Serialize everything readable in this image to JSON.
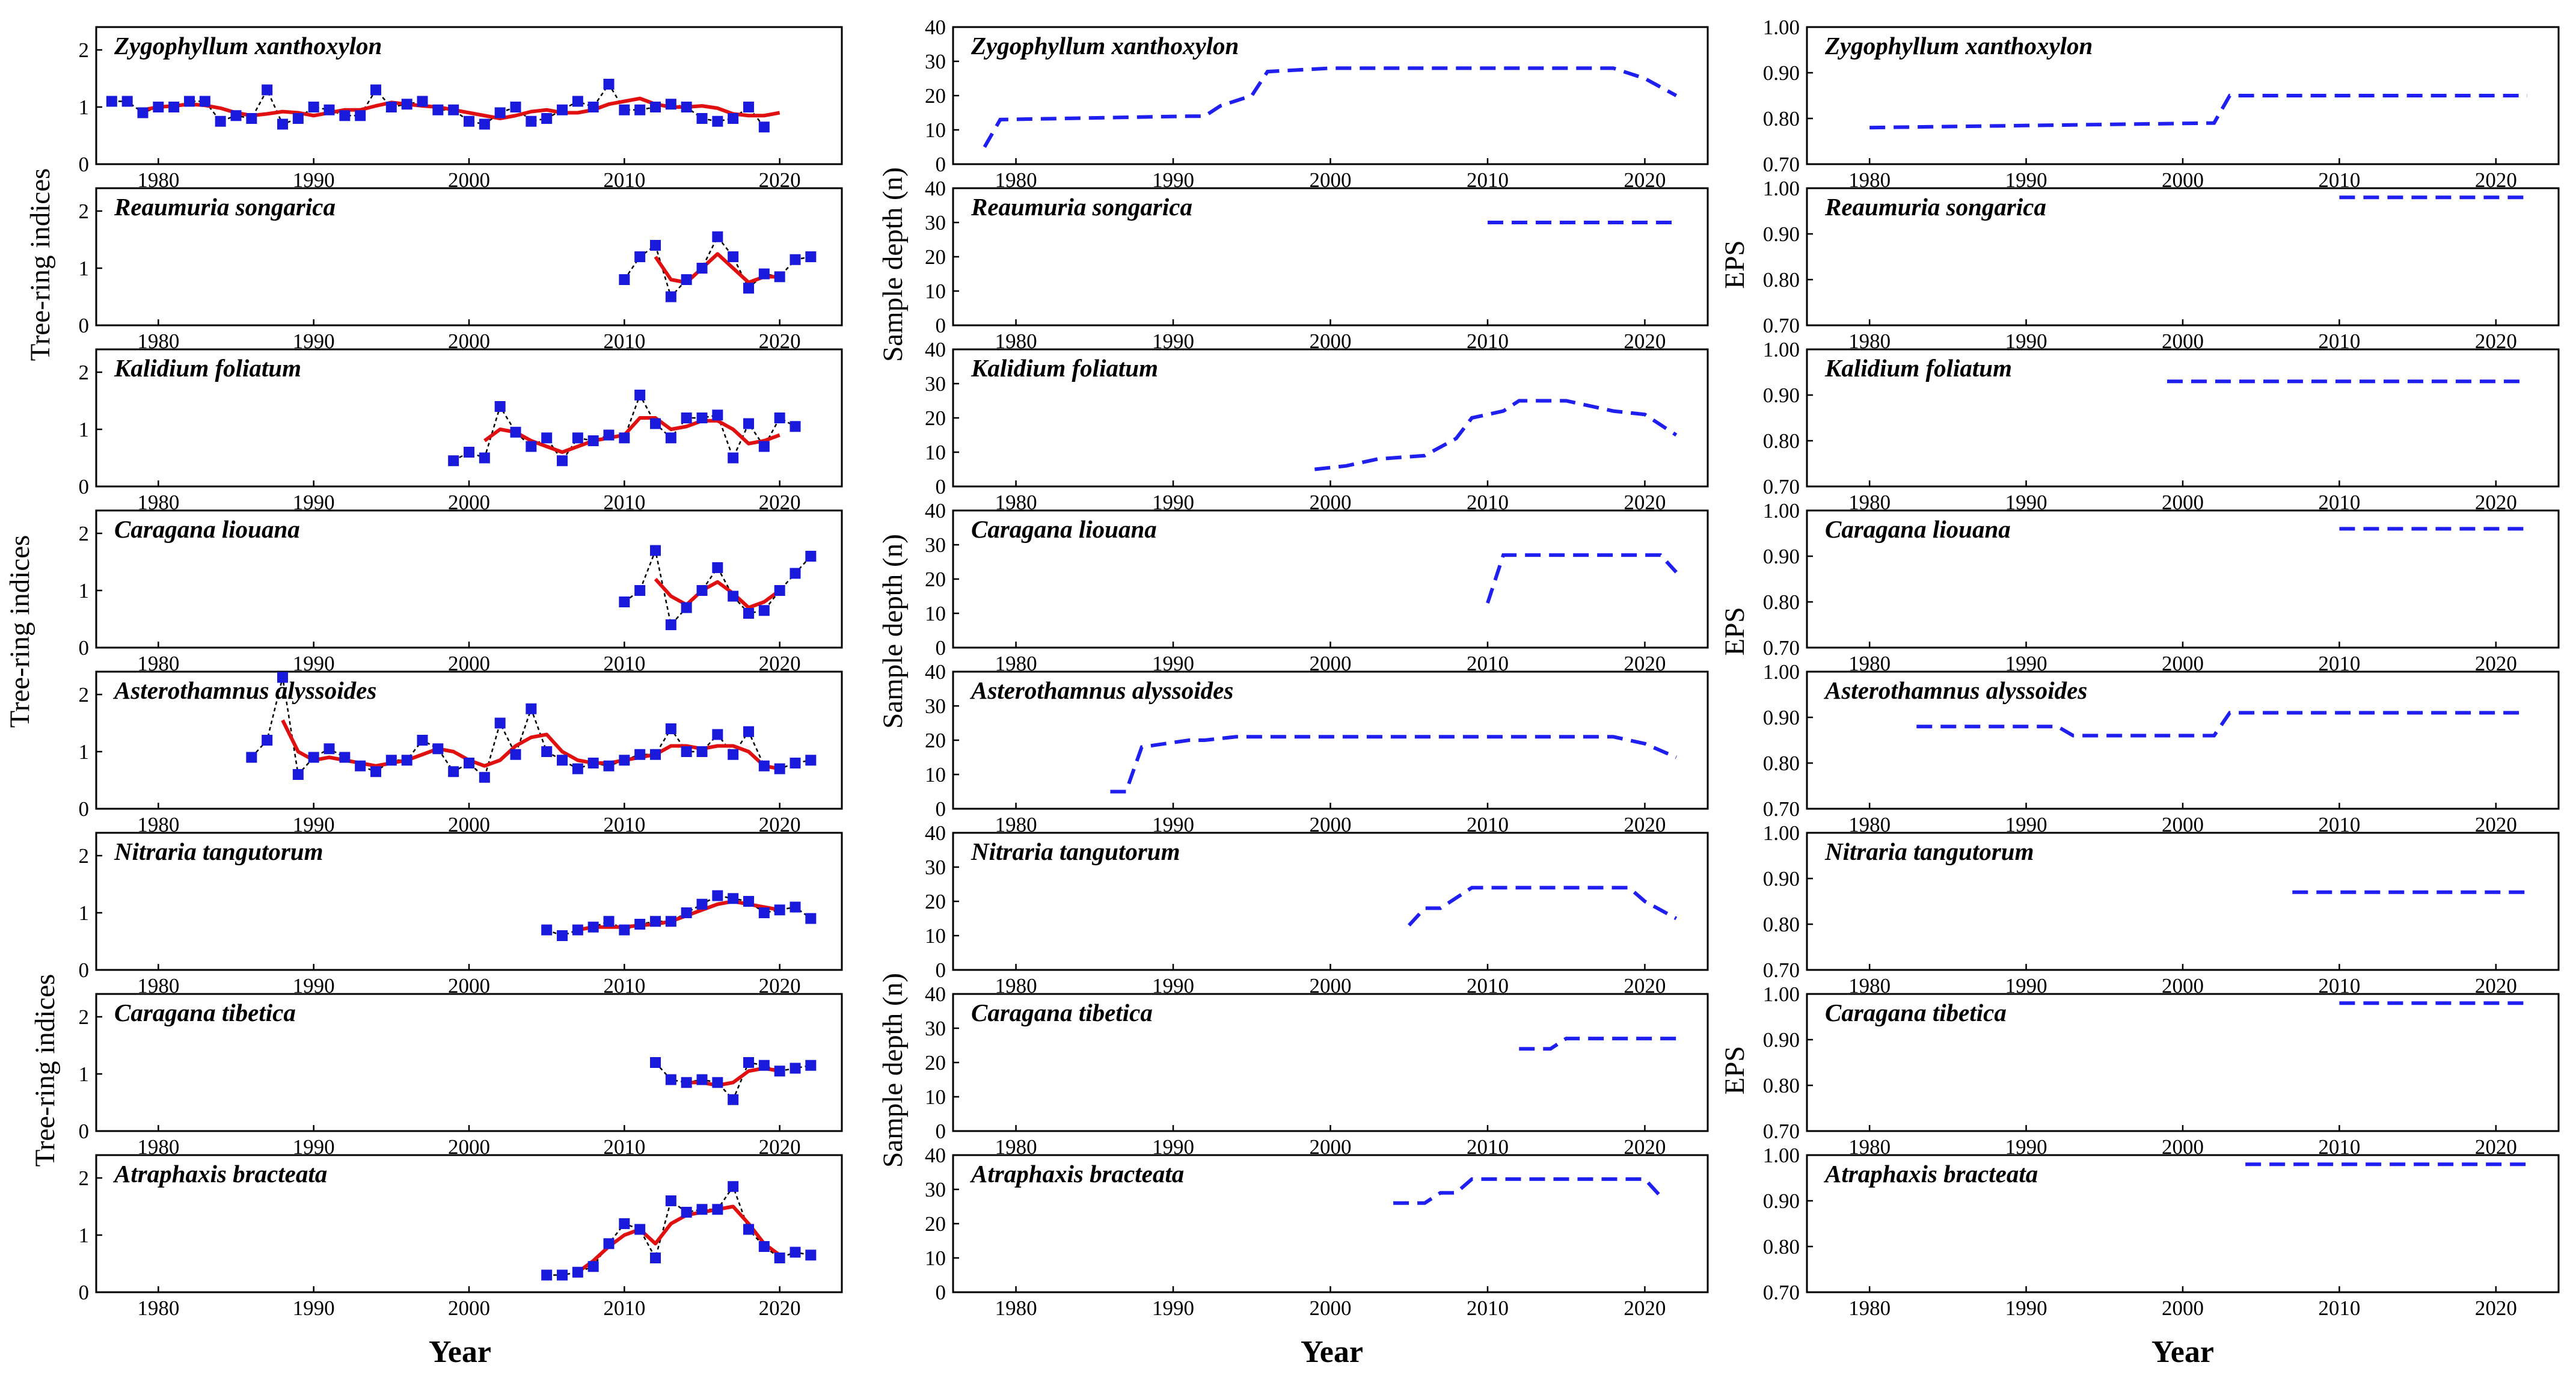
{
  "figure": {
    "x_axis_label": "Year",
    "y_axis_labels": {
      "indices": "Tree-ring indices",
      "depth": "Sample depth (n)",
      "eps": "EPS"
    },
    "colors": {
      "points": "#1a1adc",
      "smooth": "#e01010",
      "connector": "#000000",
      "dashed": "#1f1ff0",
      "axis": "#000000"
    }
  },
  "chart_data": {
    "type": "line",
    "layout": "8 rows x 3 columns small multiples",
    "x_ticks": [
      1980,
      1990,
      2000,
      2010,
      2020
    ],
    "columns": [
      {
        "key": "indices",
        "ylabel": "Tree-ring indices",
        "ylim": [
          0,
          2.4
        ],
        "yticks": [
          0,
          1,
          2
        ],
        "ytick_labels": [
          "0",
          "1",
          "2"
        ]
      },
      {
        "key": "depth",
        "ylabel": "Sample depth (n)",
        "ylim": [
          0,
          40
        ],
        "yticks": [
          0,
          10,
          20,
          30,
          40
        ],
        "ytick_labels": [
          "0",
          "10",
          "20",
          "30",
          "40"
        ]
      },
      {
        "key": "eps",
        "ylabel": "EPS",
        "ylim": [
          0.7,
          1.0
        ],
        "yticks": [
          0.7,
          0.8,
          0.9,
          1.0
        ],
        "ytick_labels": [
          "0.70",
          "0.80",
          "0.90",
          "1.00"
        ]
      }
    ],
    "species": [
      {
        "name": "Zygophyllum xanthoxylon",
        "indices": {
          "start": 1977,
          "values": [
            1.1,
            1.1,
            0.9,
            1.0,
            1.0,
            1.1,
            1.1,
            0.75,
            0.85,
            0.8,
            1.3,
            0.7,
            0.8,
            1.0,
            0.95,
            0.85,
            0.85,
            1.3,
            1.0,
            1.05,
            1.1,
            0.95,
            0.95,
            0.75,
            0.7,
            0.9,
            1.0,
            0.75,
            0.8,
            0.95,
            1.1,
            1.0,
            1.4,
            0.95,
            0.95,
            1.0,
            1.05,
            1.0,
            0.8,
            0.75,
            0.8,
            1.0,
            0.65
          ]
        },
        "smooth": {
          "start": 1979,
          "values": [
            0.95,
            1.0,
            1.02,
            1.05,
            1.03,
            0.98,
            0.9,
            0.85,
            0.88,
            0.92,
            0.9,
            0.85,
            0.9,
            0.95,
            0.95,
            1.02,
            1.08,
            1.05,
            1.02,
            1.0,
            0.95,
            0.9,
            0.85,
            0.8,
            0.85,
            0.92,
            0.95,
            0.9,
            0.9,
            0.95,
            1.05,
            1.1,
            1.15,
            1.05,
            1.0,
            1.0,
            1.02,
            0.98,
            0.88,
            0.85,
            0.85,
            0.9
          ]
        },
        "depth": [
          [
            1978,
            5
          ],
          [
            1979,
            13
          ],
          [
            1991,
            14
          ],
          [
            1992,
            14
          ],
          [
            1993,
            17
          ],
          [
            1995,
            20
          ],
          [
            1996,
            27
          ],
          [
            2000,
            28
          ],
          [
            2018,
            28
          ],
          [
            2020,
            25
          ],
          [
            2022,
            20
          ]
        ],
        "eps": [
          [
            1980,
            0.78
          ],
          [
            2002,
            0.79
          ],
          [
            2003,
            0.85
          ],
          [
            2022,
            0.85
          ]
        ]
      },
      {
        "name": "Reaumuria songarica",
        "indices": {
          "start": 2010,
          "values": [
            0.8,
            1.2,
            1.4,
            0.5,
            0.8,
            1.0,
            1.55,
            1.2,
            0.65,
            0.9,
            0.85,
            1.15,
            1.2
          ]
        },
        "smooth": {
          "start": 2012,
          "values": [
            1.2,
            0.8,
            0.75,
            1.0,
            1.25,
            1.0,
            0.75,
            0.85,
            0.85
          ]
        },
        "depth": [
          [
            2010,
            30
          ],
          [
            2022,
            30
          ]
        ],
        "eps": [
          [
            2010,
            0.98
          ],
          [
            2022,
            0.98
          ]
        ]
      },
      {
        "name": "Kalidium foliatum",
        "indices": {
          "start": 1999,
          "values": [
            0.45,
            0.6,
            0.5,
            1.4,
            0.95,
            0.7,
            0.85,
            0.45,
            0.85,
            0.8,
            0.9,
            0.85,
            1.6,
            1.1,
            0.85,
            1.2,
            1.2,
            1.25,
            0.5,
            1.1,
            0.7,
            1.2,
            1.05
          ]
        },
        "smooth": {
          "start": 2001,
          "values": [
            0.8,
            1.0,
            0.95,
            0.8,
            0.7,
            0.6,
            0.7,
            0.8,
            0.85,
            0.9,
            1.2,
            1.2,
            1.0,
            1.05,
            1.15,
            1.15,
            1.0,
            0.75,
            0.8,
            0.9
          ]
        },
        "depth": [
          [
            1999,
            5
          ],
          [
            2001,
            6
          ],
          [
            2003,
            8
          ],
          [
            2006,
            9
          ],
          [
            2008,
            14
          ],
          [
            2009,
            20
          ],
          [
            2011,
            22
          ],
          [
            2012,
            25
          ],
          [
            2015,
            25
          ],
          [
            2018,
            22
          ],
          [
            2020,
            21
          ],
          [
            2022,
            15
          ]
        ],
        "eps": [
          [
            1999,
            0.93
          ],
          [
            2022,
            0.93
          ]
        ]
      },
      {
        "name": "Caragana liouana",
        "indices": {
          "start": 2010,
          "values": [
            0.8,
            1.0,
            1.7,
            0.4,
            0.7,
            1.0,
            1.4,
            0.9,
            0.6,
            0.65,
            1.0,
            1.3,
            1.6
          ]
        },
        "smooth": {
          "start": 2012,
          "values": [
            1.2,
            0.9,
            0.75,
            1.0,
            1.15,
            0.95,
            0.7,
            0.8,
            1.0
          ]
        },
        "depth": [
          [
            2010,
            13
          ],
          [
            2011,
            27
          ],
          [
            2021,
            27
          ],
          [
            2022,
            22
          ]
        ],
        "eps": [
          [
            2010,
            0.96
          ],
          [
            2022,
            0.96
          ]
        ]
      },
      {
        "name": "Asterothamnus alyssoides",
        "indices": {
          "start": 1986,
          "values": [
            0.9,
            1.2,
            2.3,
            0.6,
            0.9,
            1.05,
            0.9,
            0.75,
            0.65,
            0.85,
            0.85,
            1.2,
            1.05,
            0.65,
            0.8,
            0.55,
            1.5,
            0.95,
            1.75,
            1.0,
            0.85,
            0.7,
            0.8,
            0.75,
            0.85,
            0.95,
            0.95,
            1.4,
            1.0,
            1.0,
            1.3,
            0.95,
            1.35,
            0.75,
            0.7,
            0.8,
            0.85
          ]
        },
        "smooth": {
          "start": 1988,
          "values": [
            1.55,
            1.0,
            0.85,
            0.9,
            0.85,
            0.8,
            0.75,
            0.8,
            0.85,
            0.95,
            1.05,
            1.0,
            0.85,
            0.75,
            0.85,
            1.1,
            1.25,
            1.3,
            1.0,
            0.85,
            0.8,
            0.8,
            0.85,
            0.9,
            0.95,
            1.1,
            1.1,
            1.05,
            1.1,
            1.1,
            1.0,
            0.75,
            0.7
          ]
        },
        "depth": [
          [
            1986,
            5
          ],
          [
            1987,
            5
          ],
          [
            1988,
            18
          ],
          [
            1991,
            20
          ],
          [
            1992,
            20
          ],
          [
            1994,
            21
          ],
          [
            2018,
            21
          ],
          [
            2020,
            19
          ],
          [
            2022,
            15
          ]
        ],
        "eps": [
          [
            1983,
            0.88
          ],
          [
            1992,
            0.88
          ],
          [
            1993,
            0.86
          ],
          [
            2002,
            0.86
          ],
          [
            2003,
            0.91
          ],
          [
            2022,
            0.91
          ]
        ]
      },
      {
        "name": "Nitraria tangutorum",
        "indices": {
          "start": 2005,
          "values": [
            0.7,
            0.6,
            0.7,
            0.75,
            0.85,
            0.7,
            0.8,
            0.85,
            0.85,
            1.0,
            1.15,
            1.3,
            1.25,
            1.2,
            1.0,
            1.05,
            1.1,
            0.9
          ]
        },
        "smooth": {
          "start": 2007,
          "values": [
            0.7,
            0.75,
            0.75,
            0.75,
            0.78,
            0.8,
            0.85,
            0.95,
            1.05,
            1.15,
            1.2,
            1.15,
            1.1,
            1.05
          ]
        },
        "depth": [
          [
            2005,
            13
          ],
          [
            2006,
            18
          ],
          [
            2007,
            18
          ],
          [
            2009,
            24
          ],
          [
            2019,
            24
          ],
          [
            2020,
            20
          ],
          [
            2022,
            15
          ]
        ],
        "eps": [
          [
            2007,
            0.87
          ],
          [
            2022,
            0.87
          ]
        ]
      },
      {
        "name": "Caragana tibetica",
        "indices": {
          "start": 2012,
          "values": [
            1.2,
            0.9,
            0.85,
            0.9,
            0.85,
            0.55,
            1.2,
            1.15,
            1.05,
            1.1,
            1.15
          ]
        },
        "smooth": {
          "start": 2014,
          "values": [
            0.85,
            0.85,
            0.8,
            0.85,
            1.05,
            1.1,
            1.05
          ]
        },
        "depth": [
          [
            2012,
            24
          ],
          [
            2014,
            24
          ],
          [
            2015,
            27
          ],
          [
            2022,
            27
          ]
        ],
        "eps": [
          [
            2010,
            0.98
          ],
          [
            2022,
            0.98
          ]
        ]
      },
      {
        "name": "Atraphaxis bracteata",
        "indices": {
          "start": 2005,
          "values": [
            0.3,
            0.3,
            0.35,
            0.45,
            0.85,
            1.2,
            1.1,
            0.6,
            1.6,
            1.4,
            1.45,
            1.45,
            1.85,
            1.1,
            0.8,
            0.6,
            0.7,
            0.65
          ]
        },
        "smooth": {
          "start": 2007,
          "values": [
            0.35,
            0.55,
            0.8,
            1.0,
            1.1,
            0.85,
            1.2,
            1.35,
            1.4,
            1.45,
            1.5,
            1.2,
            0.85,
            0.65
          ]
        },
        "depth": [
          [
            2004,
            26
          ],
          [
            2006,
            26
          ],
          [
            2007,
            29
          ],
          [
            2008,
            29
          ],
          [
            2009,
            33
          ],
          [
            2020,
            33
          ],
          [
            2021,
            28
          ]
        ],
        "eps": [
          [
            2004,
            0.98
          ],
          [
            2022,
            0.98
          ]
        ]
      }
    ]
  }
}
